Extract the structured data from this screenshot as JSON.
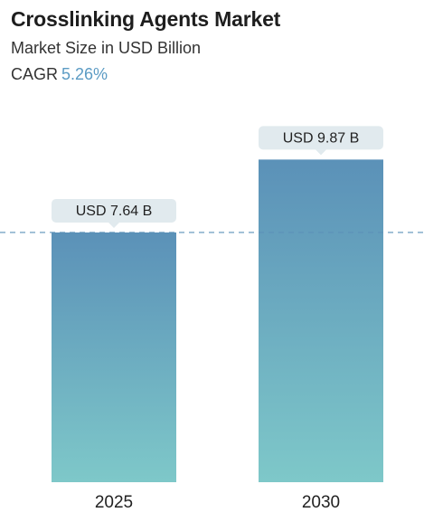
{
  "header": {
    "title": "Crosslinking Agents Market",
    "subtitle": "Market Size in USD Billion",
    "cagr_label": "CAGR",
    "cagr_value": "5.26%"
  },
  "colors": {
    "bar_top": "#5b91b8",
    "bar_bottom": "#7ec8c9",
    "callout_bg": "#e1eaee",
    "reference_line": "#5b91b8",
    "cagr_accent": "#5b9bc4"
  },
  "chart_data": {
    "type": "bar",
    "categories": [
      "2025",
      "2030"
    ],
    "values": [
      7.64,
      9.87
    ],
    "data_labels": [
      "USD 7.64 B",
      "USD 9.87 B"
    ],
    "title": "Crosslinking Agents Market",
    "subtitle": "Market Size in USD Billion",
    "ylim": [
      0,
      10.6
    ],
    "grid": false,
    "reference_line_value": 7.64
  }
}
